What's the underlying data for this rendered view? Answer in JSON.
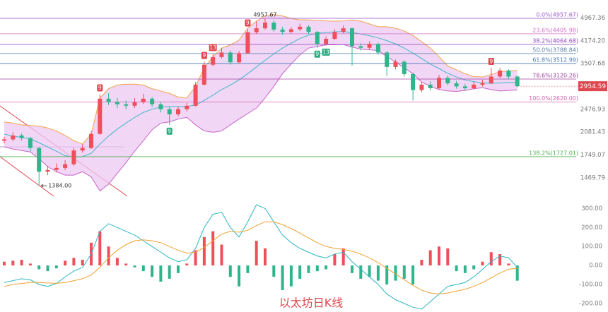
{
  "chart_data": [
    {
      "type": "candlestick",
      "log_scale": true,
      "ylim": [
        1230,
        5700
      ],
      "yticks": [
        1469.79,
        1749.07,
        2081.43,
        2476.93,
        3507.68,
        {
          "value": 4174.2,
          "label": "4174.20"
        },
        4967.36
      ],
      "up_color": "#ef4f5a",
      "down_color": "#2fb58c",
      "open": [
        1950,
        1970,
        2030,
        1990,
        1845,
        1540,
        1560,
        1585,
        1630,
        1810,
        1845,
        2054,
        2686,
        2620,
        2575,
        2546,
        2615,
        2686,
        2575,
        2480,
        2385,
        2480,
        2546,
        2990,
        3480,
        3690,
        3820,
        3545,
        3800,
        4460,
        4594,
        4800,
        4550,
        4470,
        4560,
        4650,
        4470,
        4080,
        4240,
        4470,
        4594,
        4010,
        3960,
        4080,
        3820,
        3420,
        3560,
        3240,
        2870,
        2990,
        2910,
        3150,
        3020,
        2950,
        2910,
        2990,
        3020,
        3180,
        3330,
        3180
      ],
      "high": [
        2010,
        2080,
        2060,
        2010,
        1860,
        1610,
        1640,
        1680,
        1850,
        1900,
        2100,
        2780,
        2800,
        2700,
        2650,
        2700,
        2790,
        2720,
        2620,
        2520,
        2530,
        2600,
        3050,
        3560,
        3780,
        3950,
        3880,
        3870,
        4560,
        4850,
        4957.67,
        4880,
        4650,
        4640,
        4760,
        4700,
        4500,
        4320,
        4560,
        4700,
        4620,
        4100,
        4160,
        4120,
        3860,
        3620,
        3600,
        3280,
        3050,
        3060,
        3220,
        3200,
        3080,
        3010,
        3060,
        3100,
        3400,
        3390,
        3360,
        3210
      ],
      "low": [
        1910,
        1940,
        1950,
        1800,
        1384,
        1500,
        1530,
        1560,
        1610,
        1780,
        1830,
        2040,
        2560,
        2500,
        2480,
        2500,
        2580,
        2520,
        2420,
        2200,
        2350,
        2440,
        2530,
        2970,
        3440,
        3650,
        3480,
        3520,
        3780,
        4400,
        4550,
        4480,
        4380,
        4420,
        4500,
        4400,
        3960,
        4020,
        4200,
        4420,
        3460,
        3880,
        3920,
        3760,
        3200,
        3360,
        3180,
        2650,
        2820,
        2860,
        2880,
        2980,
        2900,
        2860,
        2880,
        2950,
        3000,
        3150,
        3120,
        2930
      ],
      "close": [
        1970,
        2030,
        1990,
        1845,
        1540,
        1560,
        1585,
        1630,
        1810,
        1845,
        2054,
        2686,
        2620,
        2575,
        2546,
        2615,
        2686,
        2575,
        2480,
        2385,
        2480,
        2546,
        2990,
        3480,
        3690,
        3820,
        3545,
        3800,
        4460,
        4594,
        4800,
        4550,
        4470,
        4560,
        4650,
        4470,
        4080,
        4240,
        4470,
        4594,
        4010,
        3960,
        4080,
        3820,
        3420,
        3560,
        3240,
        2870,
        2990,
        2910,
        3150,
        3020,
        2950,
        2910,
        2990,
        3020,
        3180,
        3330,
        3180,
        2954.59
      ],
      "bollinger": {
        "fill": "#ecc8f2",
        "upper_color": "#f2a24a",
        "middle_color": "#3fb8c8",
        "lower_color": "#c864c8",
        "upper": [
          2250,
          2230,
          2200,
          2190,
          2180,
          2150,
          2100,
          2030,
          1950,
          1900,
          2050,
          2700,
          2900,
          2980,
          3000,
          3000,
          2980,
          2900,
          2850,
          2800,
          2720,
          2700,
          2950,
          3400,
          3700,
          3950,
          4050,
          4200,
          4600,
          4850,
          5050,
          5100,
          5050,
          4950,
          4900,
          4900,
          4880,
          4860,
          4850,
          4860,
          4900,
          4850,
          4750,
          4650,
          4650,
          4600,
          4500,
          4350,
          4150,
          3950,
          3700,
          3450,
          3350,
          3250,
          3180,
          3170,
          3230,
          3300,
          3320,
          3330
        ],
        "middle": [
          2050,
          2020,
          2000,
          1980,
          1920,
          1860,
          1800,
          1740,
          1720,
          1730,
          1770,
          1900,
          2020,
          2130,
          2230,
          2330,
          2420,
          2480,
          2520,
          2530,
          2530,
          2530,
          2560,
          2650,
          2760,
          2880,
          2980,
          3100,
          3250,
          3420,
          3600,
          3780,
          3950,
          4100,
          4250,
          4360,
          4420,
          4450,
          4470,
          4480,
          4450,
          4400,
          4340,
          4270,
          4180,
          4080,
          3950,
          3800,
          3650,
          3500,
          3380,
          3260,
          3170,
          3100,
          3060,
          3030,
          3020,
          3030,
          3040,
          3040
        ],
        "lower": [
          1860,
          1830,
          1810,
          1790,
          1700,
          1600,
          1540,
          1500,
          1500,
          1540,
          1480,
          1330,
          1400,
          1520,
          1650,
          1800,
          1950,
          2120,
          2230,
          2250,
          2300,
          2330,
          2200,
          2100,
          2080,
          2100,
          2200,
          2300,
          2400,
          2500,
          2700,
          2950,
          3250,
          3500,
          3750,
          3950,
          4000,
          4050,
          4050,
          4060,
          3980,
          3920,
          3900,
          3880,
          3700,
          3550,
          3400,
          3250,
          3050,
          2950,
          2880,
          2850,
          2840,
          2860,
          2900,
          2920,
          2880,
          2850,
          2860,
          2870
        ]
      },
      "fib_levels": [
        {
          "value": 4957.67,
          "label": "0.0%(4957.67)",
          "color": "#9b59d0"
        },
        {
          "value": 4405.98,
          "label": "23.6%(4405.98)",
          "color": "#d070c8"
        },
        {
          "value": 4064.68,
          "label": "38.2%(4064.68)",
          "color": "#8a3fc0"
        },
        {
          "value": 3788.84,
          "label": "50.0%(3788.84)",
          "color": "#5a7fb0"
        },
        {
          "value": 3512.99,
          "label": "61.8%(3512.99)",
          "color": "#4a78b8"
        },
        {
          "value": 3120.26,
          "label": "78.6%(3120.26)",
          "color": "#a040a0"
        },
        {
          "value": 2620,
          "label": "100.0%(2620.00)",
          "color": "#d060b0"
        },
        {
          "value": 1727.01,
          "label": "138.2%(1727.01)",
          "color": "#50b050"
        }
      ],
      "annotations": [
        {
          "value": 4957.67,
          "label": "4957.67"
        },
        {
          "value": 1384,
          "label": "1384.00"
        }
      ],
      "td_signals": [
        {
          "text": "9",
          "color": "#e0464f"
        },
        {
          "text": "9",
          "color": "#e0464f"
        },
        {
          "text": "9",
          "color": "#e0464f"
        },
        {
          "text": "13",
          "color": "#e0464f"
        },
        {
          "text": "9",
          "color": "#e0464f"
        },
        {
          "text": "9",
          "color": "#27ad7e"
        },
        {
          "text": "9",
          "color": "#27ad7e"
        },
        {
          "text": "13",
          "color": "#27ad7e"
        }
      ],
      "price_tag_color": "#e0464f"
    },
    {
      "type": "macd",
      "ylim": [
        -245,
        320
      ],
      "yticks": [
        {
          "value": 300,
          "label": "300.00"
        },
        {
          "value": 200,
          "label": "200.00"
        },
        {
          "value": 100,
          "label": "100.00"
        },
        {
          "value": 0,
          "label": "0.00"
        },
        {
          "value": -100,
          "label": "-100.00"
        },
        {
          "value": -200,
          "label": "-200.00"
        }
      ],
      "up_color": "#ef4f5a",
      "down_color": "#2fb58c",
      "dif_color": "#2bb5c4",
      "dea_color": "#f0a030",
      "histogram": [
        20,
        25,
        30,
        10,
        -20,
        -30,
        -15,
        25,
        40,
        30,
        120,
        180,
        100,
        40,
        10,
        -10,
        -30,
        -60,
        -85,
        -70,
        -40,
        10,
        80,
        150,
        180,
        110,
        -60,
        -110,
        -40,
        130,
        90,
        -60,
        -130,
        -110,
        -70,
        -40,
        -30,
        -20,
        60,
        90,
        -40,
        -70,
        -60,
        -80,
        -100,
        -80,
        -70,
        -100,
        30,
        80,
        100,
        90,
        -30,
        -40,
        -20,
        20,
        70,
        60,
        10,
        -80
      ],
      "dif": [
        -90,
        -80,
        -70,
        -75,
        -100,
        -110,
        -95,
        -60,
        -30,
        -10,
        60,
        180,
        220,
        200,
        180,
        160,
        130,
        100,
        70,
        40,
        20,
        30,
        90,
        200,
        270,
        280,
        200,
        150,
        230,
        320,
        300,
        230,
        160,
        120,
        90,
        70,
        50,
        40,
        60,
        70,
        20,
        -20,
        -60,
        -100,
        -150,
        -180,
        -200,
        -220,
        -230,
        -190,
        -150,
        -110,
        -100,
        -90,
        -60,
        -20,
        20,
        50,
        40,
        -10
      ],
      "dea": [
        -110,
        -100,
        -95,
        -90,
        -90,
        -92,
        -94,
        -90,
        -80,
        -70,
        -50,
        -10,
        40,
        80,
        110,
        130,
        135,
        130,
        120,
        100,
        80,
        65,
        70,
        95,
        130,
        165,
        180,
        175,
        185,
        210,
        230,
        230,
        215,
        195,
        170,
        145,
        120,
        100,
        90,
        85,
        75,
        60,
        40,
        15,
        -15,
        -45,
        -75,
        -105,
        -130,
        -145,
        -150,
        -145,
        -135,
        -125,
        -110,
        -90,
        -65,
        -40,
        -20,
        -15
      ]
    }
  ],
  "watermark": "以太坊日K线"
}
